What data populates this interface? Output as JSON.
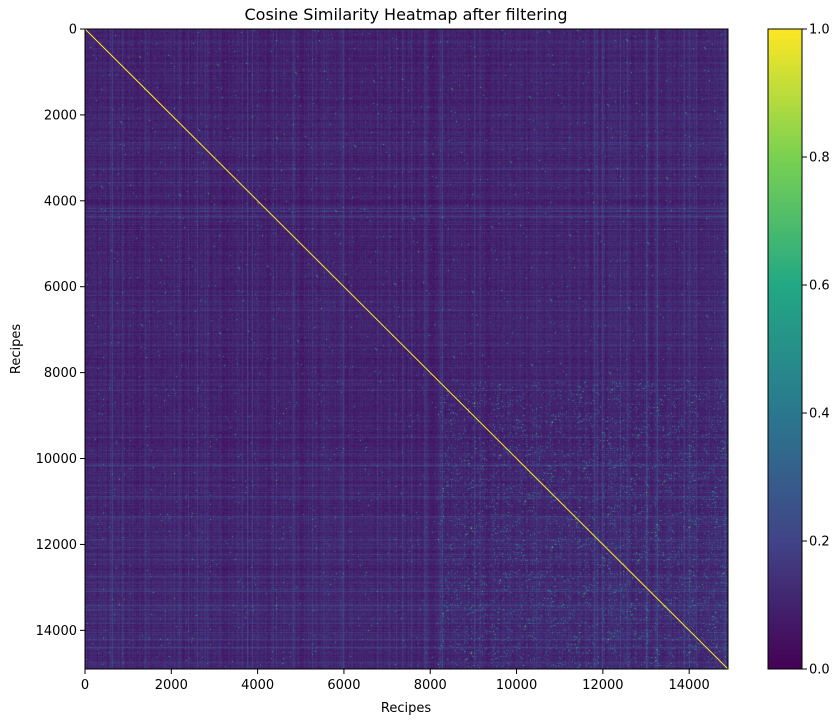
{
  "chart_data": {
    "type": "heatmap",
    "title": "Cosine Similarity Heatmap after filtering",
    "xlabel": "Recipes",
    "ylabel": "Recipes",
    "matrix_size": 14900,
    "xlim": [
      0,
      14900
    ],
    "ylim": [
      14900,
      0
    ],
    "x_ticks": [
      0,
      2000,
      4000,
      6000,
      8000,
      10000,
      12000,
      14000
    ],
    "y_ticks": [
      0,
      2000,
      4000,
      6000,
      8000,
      10000,
      12000,
      14000
    ],
    "x_tick_labels": [
      "0",
      "2000",
      "4000",
      "6000",
      "8000",
      "10000",
      "12000",
      "14000"
    ],
    "y_tick_labels": [
      "0",
      "2000",
      "4000",
      "6000",
      "8000",
      "10000",
      "12000",
      "14000"
    ],
    "diagonal_value": 1.0,
    "background_value_typical": 0.05,
    "colorbar": {
      "colormap": "viridis",
      "range": [
        0.0,
        1.0
      ],
      "ticks": [
        0.0,
        0.2,
        0.4,
        0.6,
        0.8,
        1.0
      ],
      "tick_labels": [
        "0.0",
        "0.2",
        "0.4",
        "0.6",
        "0.8",
        "1.0"
      ],
      "stops": [
        "#440154",
        "#414487",
        "#2a788e",
        "#22a884",
        "#7ad151",
        "#fde725"
      ]
    },
    "grid": false,
    "legend": "none"
  }
}
